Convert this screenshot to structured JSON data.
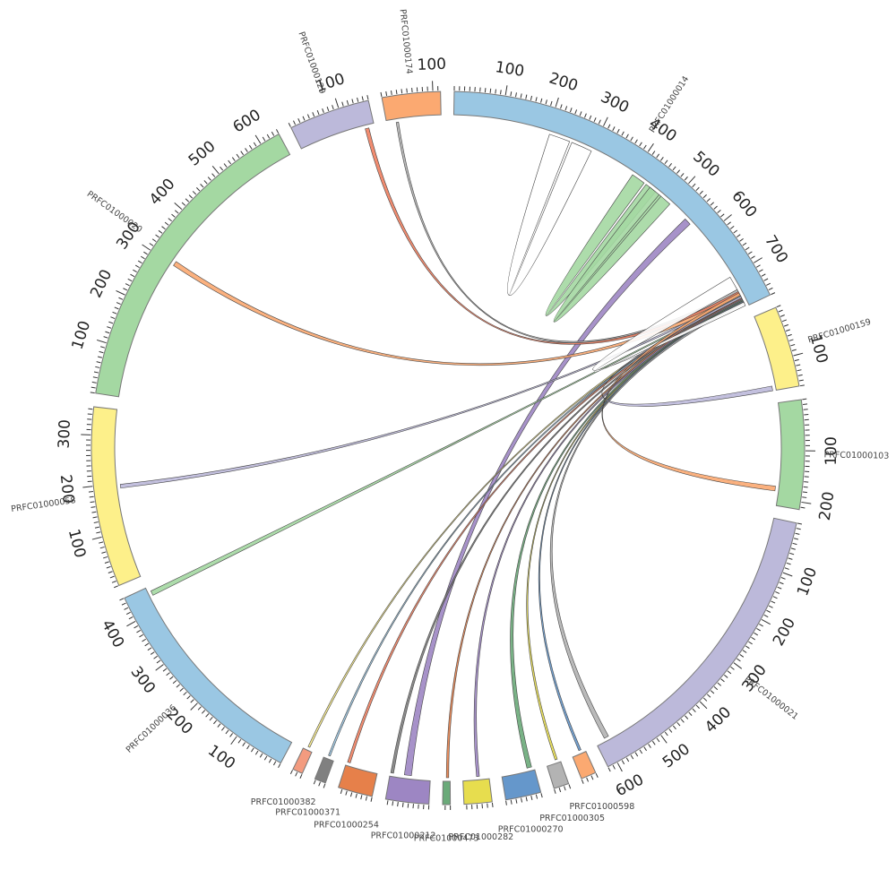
{
  "chart_data": {
    "type": "chord",
    "title": "",
    "tick_step": 100,
    "segments": [
      {
        "id": "PRFC01000014",
        "label": "PRFC01000014",
        "length": 770,
        "color": "#9ac7e3",
        "label_ticks": [
          "100",
          "200",
          "300",
          "400",
          "500",
          "600",
          "700"
        ]
      },
      {
        "id": "PRFC01000159",
        "label": "PRFC01000159",
        "length": 160,
        "color": "#fdf08a",
        "label_ticks": [
          "100"
        ]
      },
      {
        "id": "PRFC01000103",
        "label": "PRFC01000103",
        "length": 215,
        "color": "#a4d8a2",
        "label_ticks": [
          "100",
          "200"
        ]
      },
      {
        "id": "PRFC01000021",
        "label": "PRFC01000021",
        "length": 620,
        "color": "#bcb9da",
        "label_ticks": [
          "100",
          "200",
          "300",
          "400",
          "500",
          "600"
        ]
      },
      {
        "id": "PRFC01000598",
        "label": "PRFC01000598",
        "length": 30,
        "color": "#fba971",
        "label_ticks": []
      },
      {
        "id": "PRFC01000305",
        "label": "PRFC01000305",
        "length": 30,
        "color": "#b3b3b3",
        "label_ticks": []
      },
      {
        "id": "PRFC01000270",
        "label": "PRFC01000270",
        "length": 70,
        "color": "#6597cb",
        "label_ticks": []
      },
      {
        "id": "PRFC01000282",
        "label": "PRFC01000282",
        "length": 55,
        "color": "#e7dd4e",
        "label_ticks": []
      },
      {
        "id": "PRFC01000473",
        "label": "PRFC01000473",
        "length": 15,
        "color": "#6aaa79",
        "label_ticks": []
      },
      {
        "id": "PRFC01000212",
        "label": "PRFC01000212",
        "length": 85,
        "color": "#9d86c3",
        "label_ticks": []
      },
      {
        "id": "PRFC01000254",
        "label": "PRFC01000254",
        "length": 68,
        "color": "#e6804a",
        "label_ticks": []
      },
      {
        "id": "PRFC01000371",
        "label": "PRFC01000371",
        "length": 22,
        "color": "#808080",
        "label_ticks": []
      },
      {
        "id": "PRFC01000382",
        "label": "PRFC01000382",
        "length": 20,
        "color": "#f39b7f",
        "label_ticks": []
      },
      {
        "id": "PRFC01000036",
        "label": "PRFC01000036",
        "length": 450,
        "color": "#9ac7e3",
        "label_ticks": [
          "100",
          "200",
          "300",
          "400"
        ]
      },
      {
        "id": "PRFC01000058",
        "label": "PRFC01000058",
        "length": 355,
        "color": "#fdf08a",
        "label_ticks": [
          "100",
          "200",
          "300"
        ]
      },
      {
        "id": "PRFC01000020",
        "label": "PRFC01000020",
        "length": 640,
        "color": "#a4d8a2",
        "label_ticks": [
          "100",
          "200",
          "300",
          "400",
          "500",
          "600"
        ]
      },
      {
        "id": "PRFC01000129",
        "label": "PRFC01000129",
        "length": 160,
        "color": "#bcb9da",
        "label_ticks": [
          "100"
        ]
      },
      {
        "id": "PRFC01000174",
        "label": "PRFC01000174",
        "length": 115,
        "color": "#fba971",
        "label_ticks": [
          "100"
        ]
      }
    ],
    "links": [
      {
        "source": "PRFC01000014",
        "s": [
          205,
          250
        ],
        "target": "PRFC01000014",
        "t": [
          255,
          300
        ],
        "color": "#ffffff"
      },
      {
        "source": "PRFC01000014",
        "s": [
          400,
          430
        ],
        "target": "PRFC01000014",
        "t": [
          435,
          460
        ],
        "color": "#a4d8a2"
      },
      {
        "source": "PRFC01000014",
        "s": [
          445,
          475
        ],
        "target": "PRFC01000014",
        "t": [
          470,
          500
        ],
        "color": "#a4d8a2"
      },
      {
        "source": "PRFC01000014",
        "s": [
          545,
          560
        ],
        "target": "PRFC01000212",
        "t": [
          40,
          55
        ],
        "color": "#9d86c3"
      },
      {
        "source": "PRFC01000014",
        "s": [
          730,
          738
        ],
        "target": "PRFC01000174",
        "t": [
          20,
          25
        ],
        "color": "#b3b3b3"
      },
      {
        "source": "PRFC01000014",
        "s": [
          735,
          742
        ],
        "target": "PRFC01000129",
        "t": [
          140,
          148
        ],
        "color": "#f08060"
      },
      {
        "source": "PRFC01000014",
        "s": [
          740,
          748
        ],
        "target": "PRFC01000020",
        "t": [
          300,
          310
        ],
        "color": "#fba971"
      },
      {
        "source": "PRFC01000014",
        "s": [
          744,
          748
        ],
        "target": "PRFC01000058",
        "t": [
          190,
          198
        ],
        "color": "#bcb9da"
      },
      {
        "source": "PRFC01000014",
        "s": [
          748,
          751
        ],
        "target": "PRFC01000036",
        "t": [
          430,
          440
        ],
        "color": "#a4d8a2"
      },
      {
        "source": "PRFC01000014",
        "s": [
          742,
          746
        ],
        "target": "PRFC01000382",
        "t": [
          8,
          12
        ],
        "color": "#fdf08a"
      },
      {
        "source": "PRFC01000014",
        "s": [
          744,
          748
        ],
        "target": "PRFC01000371",
        "t": [
          10,
          14
        ],
        "color": "#9ac7e3"
      },
      {
        "source": "PRFC01000014",
        "s": [
          746,
          750
        ],
        "target": "PRFC01000254",
        "t": [
          60,
          66
        ],
        "color": "#f08060"
      },
      {
        "source": "PRFC01000014",
        "s": [
          748,
          752
        ],
        "target": "PRFC01000212",
        "t": [
          78,
          84
        ],
        "color": "#808080"
      },
      {
        "source": "PRFC01000014",
        "s": [
          750,
          754
        ],
        "target": "PRFC01000473",
        "t": [
          3,
          8
        ],
        "color": "#e6804a"
      },
      {
        "source": "PRFC01000014",
        "s": [
          752,
          756
        ],
        "target": "PRFC01000282",
        "t": [
          20,
          26
        ],
        "color": "#9d86c3"
      },
      {
        "source": "PRFC01000014",
        "s": [
          754,
          758
        ],
        "target": "PRFC01000270",
        "t": [
          5,
          15
        ],
        "color": "#6aaa79"
      },
      {
        "source": "PRFC01000014",
        "s": [
          756,
          760
        ],
        "target": "PRFC01000305",
        "t": [
          5,
          10
        ],
        "color": "#e7dd4e"
      },
      {
        "source": "PRFC01000014",
        "s": [
          757,
          761
        ],
        "target": "PRFC01000598",
        "t": [
          8,
          13
        ],
        "color": "#6597cb"
      },
      {
        "source": "PRFC01000014",
        "s": [
          759,
          763
        ],
        "target": "PRFC01000021",
        "t": [
          590,
          600
        ],
        "color": "#b3b3b3"
      },
      {
        "source": "PRFC01000014",
        "s": [
          760,
          768
        ],
        "target": "PRFC01000014",
        "t": [
          700,
          730
        ],
        "color": "#ffffff"
      },
      {
        "source": "PRFC01000159",
        "s": [
          150,
          160
        ],
        "target": "PRFC01000014",
        "t": [
          746,
          750
        ],
        "color": "#bcb9da"
      },
      {
        "source": "PRFC01000014",
        "s": [
          738,
          744
        ],
        "target": "PRFC01000103",
        "t": [
          175,
          185
        ],
        "color": "#fba971"
      }
    ]
  }
}
